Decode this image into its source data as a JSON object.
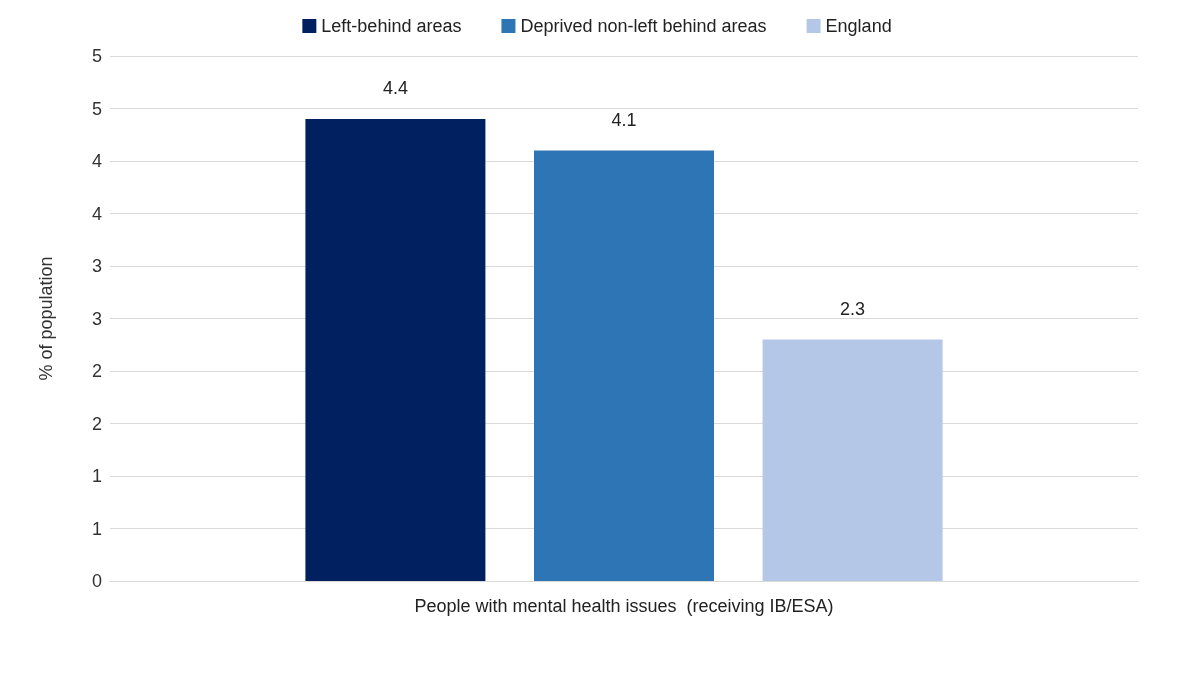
{
  "chart_data": {
    "type": "bar",
    "ylabel": "% of population",
    "categories": [
      "People with mental health issues  (receiving IB/ESA)"
    ],
    "series": [
      {
        "name": "Left-behind areas",
        "color": "#002060",
        "values": [
          4.4
        ]
      },
      {
        "name": "Deprived non-left behind areas",
        "color": "#2e75b6",
        "values": [
          4.1
        ]
      },
      {
        "name": "England",
        "color": "#b4c7e7",
        "values": [
          2.3
        ]
      }
    ],
    "ylim": [
      0,
      5
    ],
    "yticks": [
      0,
      {
        "value": 0.5,
        "label": "1"
      },
      1,
      {
        "value": 1.5,
        "label": "2"
      },
      2,
      {
        "value": 2.5,
        "label": "3"
      },
      3,
      {
        "value": 3.5,
        "label": "4"
      },
      4,
      {
        "value": 4.5,
        "label": "5"
      },
      5
    ],
    "grid": "y",
    "legend": "top",
    "data_labels": true
  }
}
